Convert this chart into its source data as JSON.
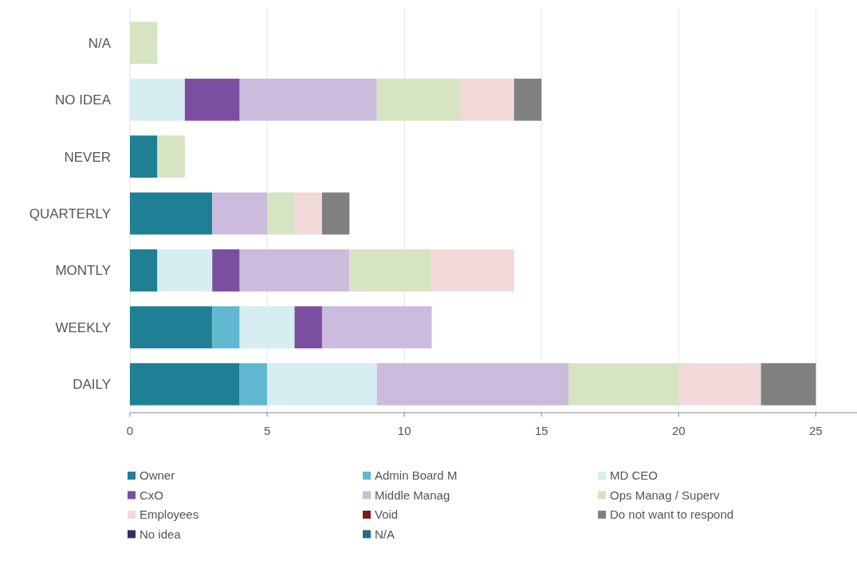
{
  "chart_data": {
    "type": "bar",
    "orientation": "horizontal",
    "stacked": true,
    "categories": [
      "N/A",
      "NO IDEA",
      "NEVER",
      "QUARTERLY",
      "MONTLY",
      "WEEKLY",
      "DAILY"
    ],
    "series": [
      {
        "name": "Owner",
        "color": "#1f7f95",
        "values": [
          null,
          null,
          1,
          3,
          1,
          3,
          4
        ]
      },
      {
        "name": "Admin Board M",
        "color": "#5fb8d0",
        "values": [
          null,
          null,
          null,
          null,
          null,
          1,
          1
        ]
      },
      {
        "name": "MD CEO",
        "color": "#d6edf2",
        "values": [
          null,
          2,
          null,
          null,
          2,
          2,
          4
        ]
      },
      {
        "name": "CxO",
        "color": "#7b4ea0",
        "values": [
          null,
          2,
          null,
          null,
          1,
          1,
          null
        ]
      },
      {
        "name": "Middle Manag",
        "color": "#cbbbdc",
        "values": [
          null,
          5,
          null,
          2,
          4,
          4,
          7
        ]
      },
      {
        "name": "Ops Manag / Superv",
        "color": "#d6e4c2",
        "values": [
          1,
          3,
          1,
          1,
          3,
          null,
          4
        ]
      },
      {
        "name": "Employees",
        "color": "#f2d9d9",
        "values": [
          null,
          2,
          null,
          1,
          3,
          null,
          3
        ]
      },
      {
        "name": "Void",
        "color": "#7b1a1a",
        "values": [
          null,
          null,
          null,
          null,
          null,
          null,
          null
        ]
      },
      {
        "name": "Do not want to respond",
        "color": "#808080",
        "values": [
          null,
          1,
          null,
          1,
          null,
          null,
          2
        ]
      },
      {
        "name": "No idea",
        "color": "#3b2a5a",
        "values": [
          null,
          null,
          null,
          null,
          null,
          null,
          null
        ]
      },
      {
        "name": "N/A",
        "color": "#1f6f80",
        "values": [
          null,
          null,
          null,
          null,
          null,
          null,
          null
        ]
      }
    ],
    "xlim": [
      0,
      26.5
    ],
    "xticks": [
      0,
      5,
      10,
      15,
      20,
      25
    ],
    "grid": "x",
    "legend": "bottom"
  }
}
